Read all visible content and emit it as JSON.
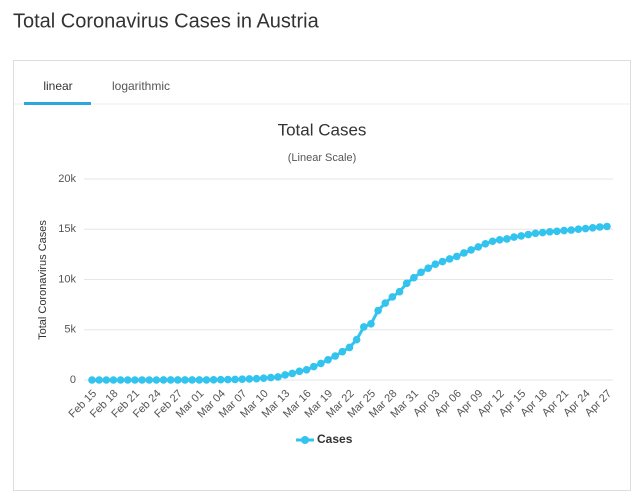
{
  "header": {
    "title": "Total Coronavirus Cases in Austria"
  },
  "tabs": [
    "linear",
    "logarithmic"
  ],
  "chart_data": {
    "type": "line",
    "title": "Total Cases",
    "subtitle": "(Linear Scale)",
    "y_label": "Total Coronavirus Cases",
    "categories": [
      "Feb 15",
      null,
      null,
      "Feb 18",
      null,
      null,
      "Feb 21",
      null,
      null,
      "Feb 24",
      null,
      null,
      "Feb 27",
      null,
      null,
      "Mar 01",
      null,
      null,
      "Mar 04",
      null,
      null,
      "Mar 07",
      null,
      null,
      "Mar 10",
      null,
      null,
      "Mar 13",
      null,
      null,
      "Mar 16",
      null,
      null,
      "Mar 19",
      null,
      null,
      "Mar 22",
      null,
      null,
      "Mar 25",
      null,
      null,
      "Mar 28",
      null,
      null,
      "Mar 31",
      null,
      null,
      "Apr 03",
      null,
      null,
      "Apr 06",
      null,
      null,
      "Apr 09",
      null,
      null,
      "Apr 12",
      null,
      null,
      "Apr 15",
      null,
      null,
      "Apr 18",
      null,
      null,
      "Apr 21",
      null,
      null,
      "Apr 24",
      null,
      null,
      "Apr 27"
    ],
    "series": [
      {
        "name": "Cases",
        "color": "#33c3ef",
        "values": [
          0,
          0,
          0,
          0,
          0,
          0,
          0,
          0,
          0,
          0,
          2,
          2,
          3,
          3,
          9,
          10,
          10,
          18,
          29,
          41,
          55,
          79,
          104,
          131,
          182,
          246,
          302,
          504,
          655,
          860,
          1016,
          1332,
          1646,
          2013,
          2388,
          2814,
          3244,
          4014,
          5282,
          5588,
          6909,
          7657,
          8271,
          8788,
          9618,
          10180,
          10711,
          11129,
          11524,
          11781,
          12051,
          12297,
          12639,
          12942,
          13244,
          13555,
          13806,
          13945,
          14041,
          14226,
          14336,
          14476,
          14595,
          14671,
          14749,
          14795,
          14873,
          14925,
          15002,
          15071,
          15148,
          15225,
          15274
        ]
      }
    ],
    "ylim": [
      0,
      20000
    ],
    "yticks": [
      0,
      {
        "value": 5000,
        "label": "5k"
      },
      {
        "value": 10000,
        "label": "10k"
      },
      {
        "value": 15000,
        "label": "15k"
      },
      {
        "value": 20000,
        "label": "20k"
      }
    ],
    "grid": true
  }
}
